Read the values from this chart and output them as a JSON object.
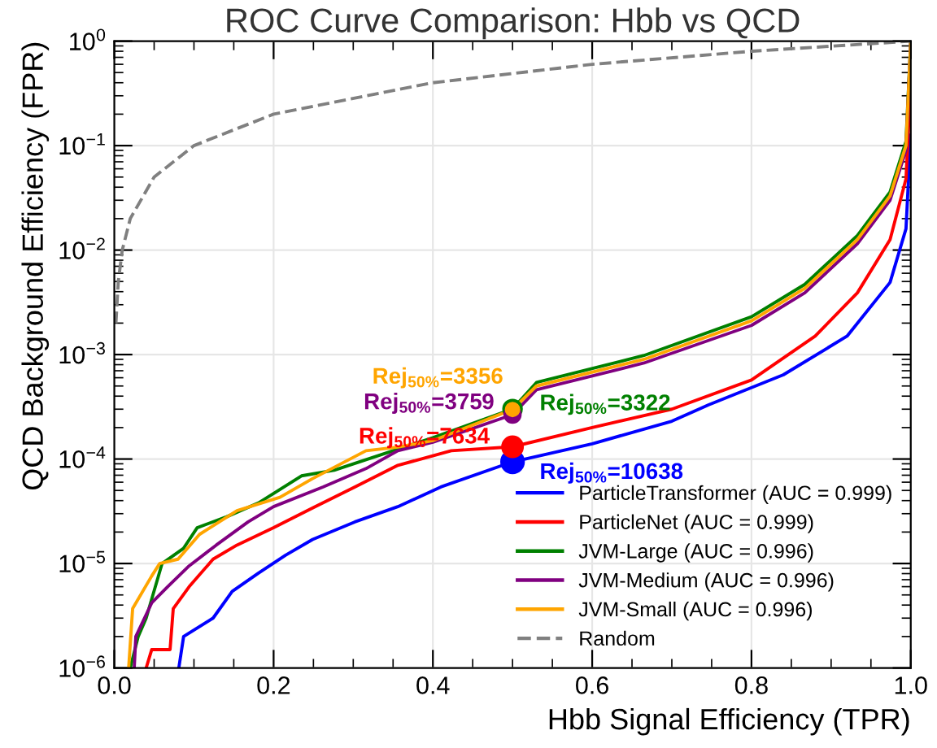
{
  "chart_data": {
    "type": "line",
    "title": "ROC Curve Comparison: Hbb vs QCD",
    "xlabel": "Hbb Signal Efficiency (TPR)",
    "ylabel": "QCD Background Efficiency (FPR)",
    "log": "y",
    "xlim": [
      0,
      1
    ],
    "ylim": [
      1e-06,
      1
    ],
    "xticks": [
      {
        "value": 0,
        "label": "0.0"
      },
      {
        "value": 0.2,
        "label": "0.2"
      },
      {
        "value": 0.4,
        "label": "0.4"
      },
      {
        "value": 0.6,
        "label": "0.6"
      },
      {
        "value": 0.8,
        "label": "0.8"
      },
      {
        "value": 1,
        "label": "1.0"
      }
    ],
    "yticks": [
      {
        "value": 1e-06,
        "label": "10$^{−6}$"
      },
      {
        "value": 1e-05,
        "label": "10$^{−5}$"
      },
      {
        "value": 0.0001,
        "label": "10$^{−4}$"
      },
      {
        "value": 0.001,
        "label": "10$^{−3}$"
      },
      {
        "value": 0.01,
        "label": "10$^{−2}$"
      },
      {
        "value": 0.1,
        "label": "10$^{−1}$"
      },
      {
        "value": 1,
        "label": "10$^{0}$"
      }
    ],
    "grid": true,
    "legend": "bottom right",
    "series": [
      {
        "name": "ParticleTransformer (AUC = 0.999)",
        "color": "#0000ff",
        "x": [
          0.081,
          0.087,
          0.124,
          0.148,
          0.181,
          0.215,
          0.249,
          0.302,
          0.356,
          0.41,
          0.5,
          0.6,
          0.7,
          0.746,
          0.84,
          0.92,
          0.974,
          0.994,
          1.0
        ],
        "values": [
          1e-06,
          2e-06,
          3e-06,
          5.4e-06,
          8.1e-06,
          1.2e-05,
          1.7e-05,
          2.5e-05,
          3.5e-05,
          5.4e-05,
          9.4e-05,
          0.00014,
          0.00023,
          0.00033,
          0.00064,
          0.0015,
          0.0049,
          0.016,
          0.126
        ]
      },
      {
        "name": "ParticleNet (AUC = 0.999)",
        "color": "#ff0000",
        "x": [
          0.04,
          0.047,
          0.07,
          0.074,
          0.094,
          0.124,
          0.154,
          0.2,
          0.249,
          0.302,
          0.356,
          0.423,
          0.5,
          0.6,
          0.7,
          0.8,
          0.88,
          0.933,
          0.974,
          0.994,
          1.0
        ],
        "values": [
          1e-06,
          1.5e-06,
          1.5e-06,
          3.7e-06,
          6e-06,
          1.1e-05,
          1.5e-05,
          2.2e-05,
          3.4e-05,
          5.4e-05,
          8.7e-05,
          0.00012,
          0.000131,
          0.0002,
          0.0003,
          0.00057,
          0.0015,
          0.0039,
          0.0126,
          0.048,
          0.41
        ]
      },
      {
        "name": "JVM-Large (AUC = 0.996)",
        "color": "#008000",
        "x": [
          0.02,
          0.03,
          0.04,
          0.06,
          0.087,
          0.104,
          0.141,
          0.181,
          0.235,
          0.276,
          0.35,
          0.4,
          0.5,
          0.53,
          0.665,
          0.8,
          0.867,
          0.933,
          0.974,
          0.994,
          1.0
        ],
        "values": [
          1e-06,
          2e-06,
          3e-06,
          1e-05,
          1.4e-05,
          2.2e-05,
          2.8e-05,
          3.8e-05,
          6.9e-05,
          7.8e-05,
          0.00012,
          0.00016,
          0.000301,
          0.00054,
          0.00098,
          0.0023,
          0.0047,
          0.0138,
          0.036,
          0.11,
          1
        ]
      },
      {
        "name": "JVM-Medium (AUC = 0.996)",
        "color": "#800080",
        "x": [
          0.025,
          0.027,
          0.047,
          0.067,
          0.094,
          0.128,
          0.168,
          0.2,
          0.262,
          0.316,
          0.356,
          0.4,
          0.5,
          0.53,
          0.665,
          0.8,
          0.867,
          0.933,
          0.974,
          0.994,
          1.0
        ],
        "values": [
          1e-06,
          2e-06,
          4.2e-06,
          6e-06,
          9.5e-06,
          1.5e-05,
          2.5e-05,
          3.5e-05,
          5.4e-05,
          8.1e-05,
          0.00012,
          0.000145,
          0.000266,
          0.00046,
          0.00083,
          0.0019,
          0.0039,
          0.0115,
          0.03,
          0.09,
          1
        ]
      },
      {
        "name": "JVM-Small (AUC = 0.996)",
        "color": "#ffa500",
        "x": [
          0.018,
          0.023,
          0.047,
          0.057,
          0.08,
          0.107,
          0.154,
          0.208,
          0.249,
          0.316,
          0.356,
          0.4,
          0.5,
          0.53,
          0.665,
          0.8,
          0.867,
          0.933,
          0.974,
          0.994,
          1.0
        ],
        "values": [
          1e-06,
          3.7e-06,
          7.6e-06,
          1e-05,
          1.1e-05,
          1.9e-05,
          3.2e-05,
          4.3e-05,
          6.5e-05,
          0.00012,
          0.00013,
          0.00015,
          0.000298,
          0.0005,
          0.0009,
          0.0021,
          0.0043,
          0.0126,
          0.033,
          0.1,
          1
        ]
      },
      {
        "name": "Random",
        "type": "line",
        "line_style": "dashed",
        "color": "#808080",
        "x": [
          0.002,
          0.005,
          0.01,
          0.02,
          0.05,
          0.1,
          0.2,
          0.4,
          0.6,
          0.8,
          1.0
        ],
        "values": [
          0.002,
          0.005,
          0.01,
          0.02,
          0.05,
          0.1,
          0.2,
          0.4,
          0.6,
          0.8,
          1.0
        ]
      },
      {
        "type": "scatter",
        "marker": "circle",
        "color": "#0000ff",
        "x": [
          0.5
        ],
        "values": [
          9.4e-05
        ]
      },
      {
        "type": "scatter",
        "marker": "circle",
        "color": "#ff0000",
        "x": [
          0.5
        ],
        "values": [
          0.000131
        ]
      },
      {
        "type": "scatter",
        "marker": "circle",
        "color": "#008000",
        "x": [
          0.5
        ],
        "values": [
          0.000301
        ]
      },
      {
        "type": "scatter",
        "marker": "circle",
        "color": "#800080",
        "x": [
          0.5
        ],
        "values": [
          0.000266
        ]
      },
      {
        "type": "scatter",
        "marker": "circle",
        "color": "#ffa500",
        "x": [
          0.5
        ],
        "values": [
          0.000298
        ]
      }
    ],
    "annotations": [
      "Rej$_{50%}$=10638",
      "Rej$_{50%}$=7634",
      "Rej$_{50%}$=3322",
      "Rej$_{50%}$=3759",
      "Rej$_{50%}$=3356"
    ]
  }
}
